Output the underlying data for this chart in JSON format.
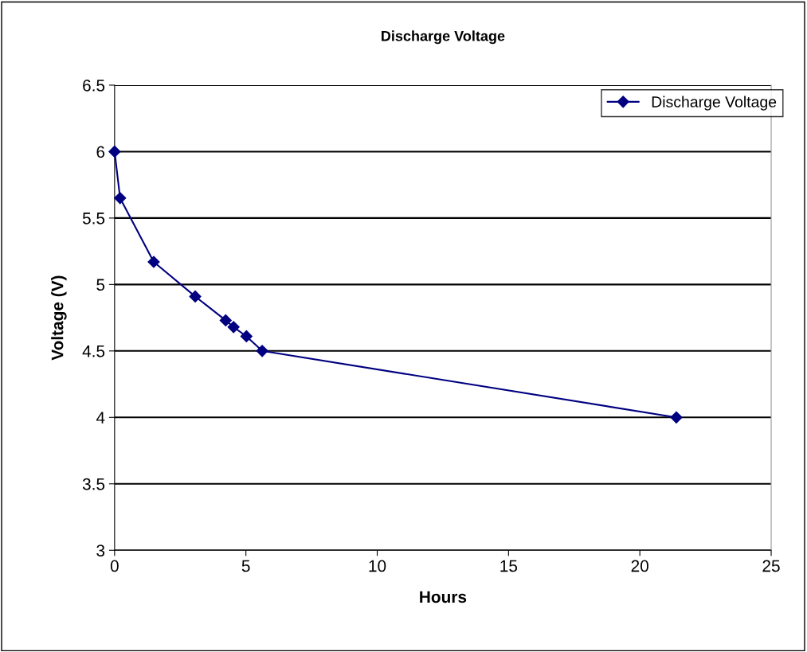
{
  "chart_data": {
    "type": "line",
    "title": "Discharge Voltage",
    "xlabel": "Hours",
    "ylabel": "Voltage (V)",
    "x": [
      0,
      0.21,
      1.49,
      3.07,
      4.23,
      4.53,
      5.02,
      5.62,
      21.39
    ],
    "series": [
      {
        "name": "Discharge Voltage",
        "color": "#000080",
        "values": [
          6.0,
          5.65,
          5.17,
          4.91,
          4.73,
          4.68,
          4.61,
          4.5,
          4.0
        ]
      }
    ],
    "xlim": [
      0,
      25
    ],
    "xticks": [
      0,
      5,
      10,
      15,
      20,
      25
    ],
    "ylim": [
      3,
      6.5
    ],
    "yticks": [
      3,
      3.5,
      4,
      4.5,
      5,
      5.5,
      6,
      6.5
    ],
    "grid": "y",
    "legend": "top right",
    "marker": "diamond",
    "line_style": "solid"
  }
}
